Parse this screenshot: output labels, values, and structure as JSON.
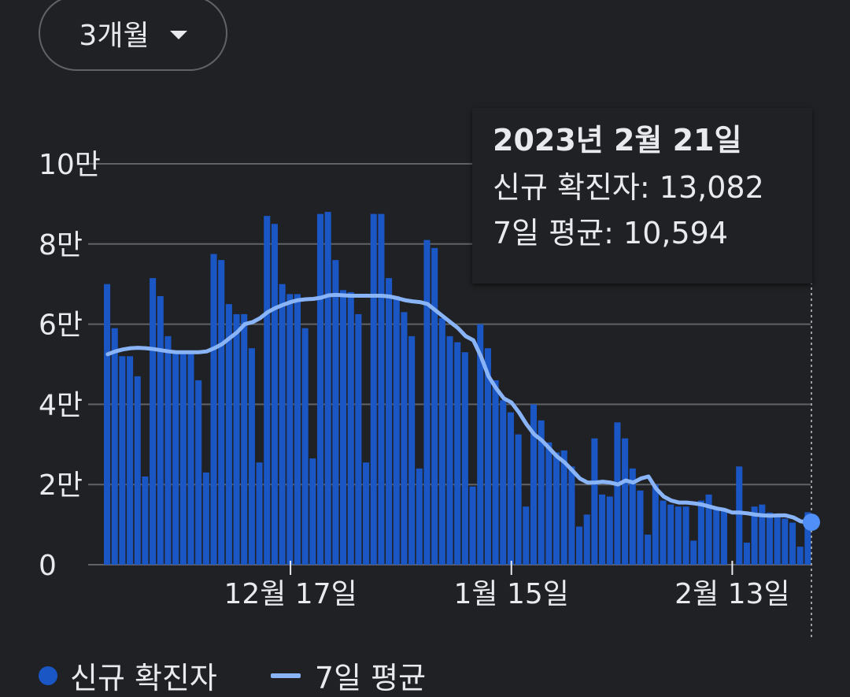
{
  "range_selector": {
    "label": "3개월",
    "icon": "caret-down-icon"
  },
  "tooltip": {
    "date": "2023년 2월 21일",
    "cases_label": "신규 확진자",
    "cases_value": "13,082",
    "avg_label": "7일 평균",
    "avg_value": "10,594"
  },
  "legend": {
    "cases": "신규 확진자",
    "avg": "7일 평균"
  },
  "colors": {
    "bar": "#1a56c4",
    "line": "#8ab4f8",
    "grid": "#5f6368",
    "marker": "#4f8ff7"
  },
  "chart_data": {
    "type": "bar",
    "ylim": [
      0,
      100000
    ],
    "ytick_values": [
      0,
      20000,
      40000,
      60000,
      80000,
      100000
    ],
    "ytick_labels": [
      "0",
      "2만",
      "4만",
      "6만",
      "8만",
      "10만"
    ],
    "xtick_labels": [
      {
        "label": "12월 17일",
        "index": 24
      },
      {
        "label": "1월 15일",
        "index": 53
      },
      {
        "label": "2월 13일",
        "index": 82
      }
    ],
    "series": [
      {
        "name": "신규 확진자",
        "type": "bar",
        "values": [
          70000,
          59000,
          52000,
          52000,
          47000,
          22000,
          71500,
          67000,
          57000,
          53000,
          53000,
          53000,
          46000,
          23000,
          77500,
          76000,
          65000,
          62500,
          62500,
          54000,
          25500,
          87000,
          85000,
          70000,
          67500,
          67500,
          59000,
          26500,
          87500,
          88000,
          76000,
          68500,
          68000,
          62500,
          25500,
          87500,
          87500,
          71500,
          67000,
          63000,
          57000,
          24000,
          81000,
          79000,
          61500,
          57000,
          55500,
          53000,
          19500,
          60000,
          54000,
          46000,
          41000,
          38000,
          32500,
          14500,
          40000,
          36000,
          30500,
          28000,
          28500,
          24500,
          9500,
          12500,
          31500,
          17500,
          17000,
          35500,
          31500,
          24000,
          18500,
          7500,
          20000,
          16000,
          15000,
          14500,
          14500,
          6000,
          16000,
          17500,
          14000,
          13500,
          0,
          24500,
          5500,
          14500,
          15000,
          13000,
          12000,
          11500,
          10500,
          4500,
          13082
        ],
        "approx_from_gridlines": true
      },
      {
        "name": "7일 평균",
        "type": "line",
        "values": [
          52500,
          53200,
          53700,
          54000,
          54100,
          54000,
          53800,
          53500,
          53200,
          53000,
          53000,
          53000,
          53000,
          53200,
          54000,
          55000,
          56500,
          58000,
          60000,
          60500,
          61500,
          63000,
          64000,
          64800,
          65500,
          66000,
          66200,
          66300,
          66600,
          67200,
          67300,
          67200,
          67100,
          67100,
          67100,
          67100,
          67100,
          66900,
          66500,
          66000,
          65700,
          65500,
          65000,
          63500,
          62000,
          60500,
          59000,
          57000,
          56000,
          52000,
          47000,
          44000,
          41500,
          40500,
          38000,
          35000,
          32500,
          31000,
          29000,
          27000,
          25500,
          23500,
          21500,
          20500,
          20500,
          20700,
          20500,
          20000,
          21000,
          20500,
          21500,
          22000,
          19000,
          17000,
          16000,
          15500,
          15500,
          15300,
          15000,
          14500,
          14000,
          13700,
          13000,
          13000,
          12800,
          12500,
          12300,
          12200,
          12300,
          12300,
          11800,
          10800,
          10594
        ]
      }
    ]
  }
}
